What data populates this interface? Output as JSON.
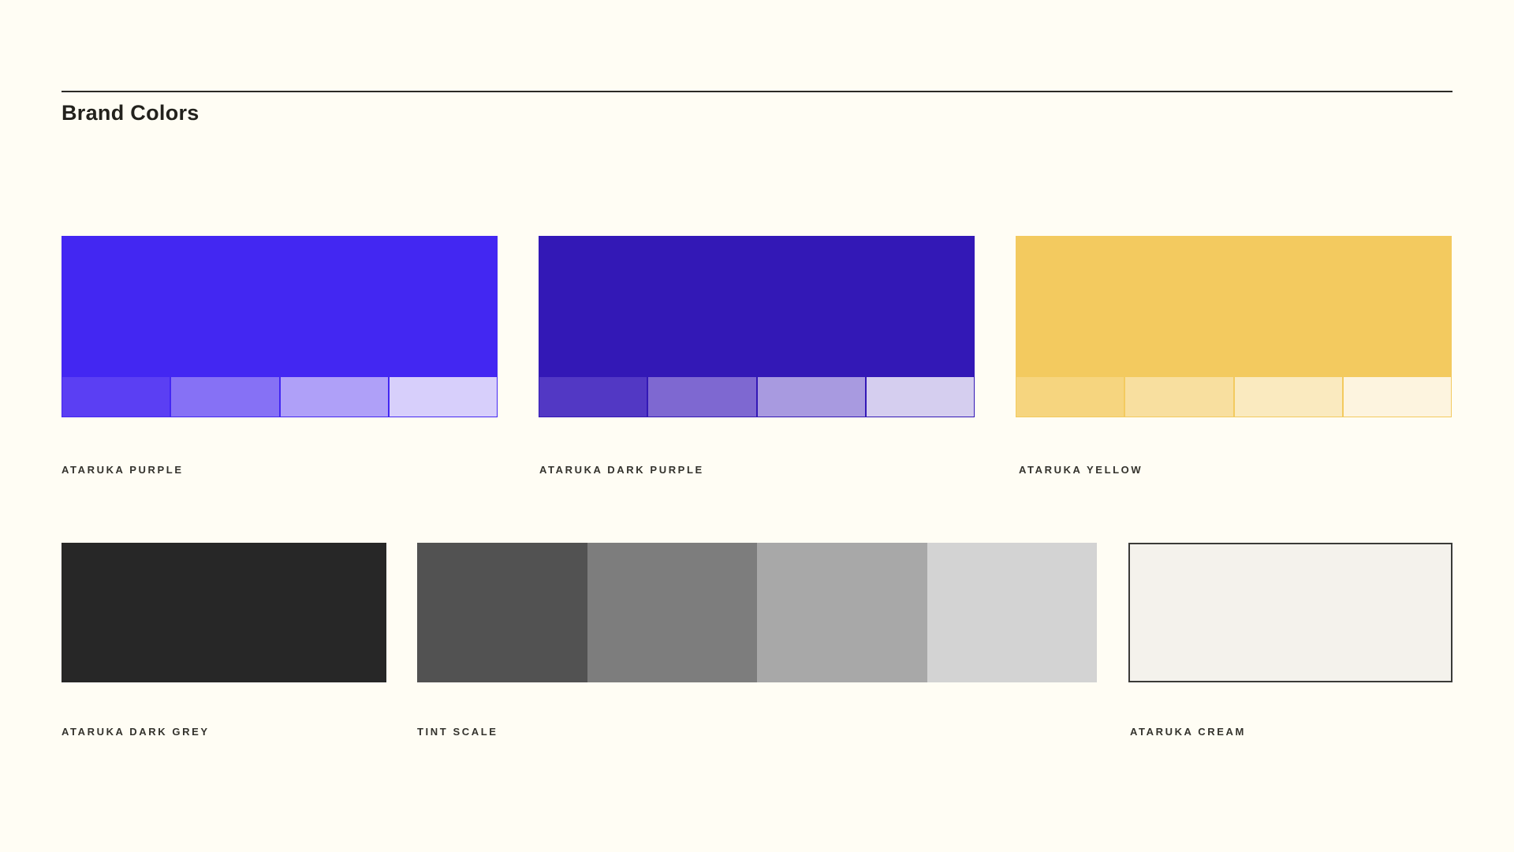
{
  "page": {
    "title": "Brand Colors",
    "background": "#FFFDF4",
    "rule_color": "#2B2A26",
    "heading_color": "#23221D",
    "label_color": "#33322C"
  },
  "palettes": [
    {
      "name": "ataruka-purple",
      "label": "ATARUKA PURPLE",
      "color": "#4327F2",
      "tints": [
        "#5B3FF3",
        "#8671F5",
        "#AFA0F8",
        "#D7CFFB"
      ]
    },
    {
      "name": "ataruka-dark-purple",
      "label": "ATARUKA DARK PURPLE",
      "color": "#3318B6",
      "tints": [
        "#5238C4",
        "#7E68D1",
        "#A89AE0",
        "#D5CEEF"
      ]
    },
    {
      "name": "ataruka-yellow",
      "label": "ATARUKA YELLOW",
      "color": "#F3CA5F",
      "tints": [
        "#F6D57F",
        "#F8DF9F",
        "#FAEABF",
        "#FDF4DF"
      ]
    },
    {
      "name": "ataruka-dark-grey",
      "label": "ATARUKA DARK GREY",
      "color": "#272727"
    },
    {
      "name": "tint-scale",
      "label": "TINT SCALE",
      "tints": [
        "#525252",
        "#7D7D7D",
        "#A8A8A8",
        "#D3D3D3"
      ]
    },
    {
      "name": "ataruka-cream",
      "label": "ATARUKA CREAM",
      "color": "#F4F2EC",
      "border_color": "#3B3B38"
    }
  ]
}
